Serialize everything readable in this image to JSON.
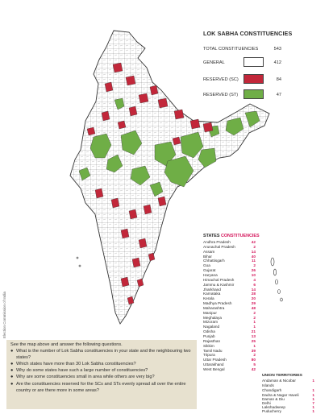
{
  "legend": {
    "title": "LOK SABHA CONSTITUENCIES",
    "total_label": "TOTAL CONSTITUENCIES",
    "total_value": "543",
    "items": [
      {
        "label": "GENERAL",
        "value": "412",
        "color": "#ffffff"
      },
      {
        "label": "RESERVED (SC)",
        "value": "84",
        "color": "#c2273a"
      },
      {
        "label": "RESERVED (ST)",
        "value": "47",
        "color": "#6fae46"
      }
    ]
  },
  "states": {
    "title_plain": "STATES",
    "title_highlight": "CONSTITUENCIES",
    "rows": [
      {
        "name": "Andhra Pradesh",
        "value": "42"
      },
      {
        "name": "Arunachal Pradesh",
        "value": "2"
      },
      {
        "name": "Assam",
        "value": "14"
      },
      {
        "name": "Bihar",
        "value": "40"
      },
      {
        "name": "Chhattisgarh",
        "value": "11"
      },
      {
        "name": "Goa",
        "value": "2"
      },
      {
        "name": "Gujarat",
        "value": "26"
      },
      {
        "name": "Haryana",
        "value": "10"
      },
      {
        "name": "Himachal Pradesh",
        "value": "4"
      },
      {
        "name": "Jammu & Kashmir",
        "value": "6"
      },
      {
        "name": "Jharkhand",
        "value": "14"
      },
      {
        "name": "Karnataka",
        "value": "28"
      },
      {
        "name": "Kerala",
        "value": "20"
      },
      {
        "name": "Madhya Pradesh",
        "value": "29"
      },
      {
        "name": "Maharashtra",
        "value": "48"
      },
      {
        "name": "Manipur",
        "value": "2"
      },
      {
        "name": "Meghalaya",
        "value": "2"
      },
      {
        "name": "Mizoram",
        "value": "1"
      },
      {
        "name": "Nagaland",
        "value": "1"
      },
      {
        "name": "Odisha",
        "value": "21"
      },
      {
        "name": "Punjab",
        "value": "13"
      },
      {
        "name": "Rajasthan",
        "value": "25"
      },
      {
        "name": "Sikkim",
        "value": "1"
      },
      {
        "name": "Tamil Nadu",
        "value": "39"
      },
      {
        "name": "Tripura",
        "value": "2"
      },
      {
        "name": "Uttar Pradesh",
        "value": "80"
      },
      {
        "name": "Uttarakhand",
        "value": "5"
      },
      {
        "name": "West Bengal",
        "value": "42"
      }
    ]
  },
  "union_territories": {
    "title": "UNION TERRITORIES",
    "rows": [
      {
        "name": "Andaman & Nicobar\nIslands",
        "value": "1"
      },
      {
        "name": "Chandigarh",
        "value": "1"
      },
      {
        "name": "Dadra & Nagar Haveli",
        "value": "1"
      },
      {
        "name": "Daman & Diu",
        "value": "1"
      },
      {
        "name": "Delhi",
        "value": "7"
      },
      {
        "name": "Lakshadweep",
        "value": "1"
      },
      {
        "name": "Puducherry",
        "value": "1"
      }
    ]
  },
  "questions": {
    "intro": "See the map above and answer the following questions.",
    "items": [
      "What is the number of Lok Sabha constituencies in your state and the neighbouring two states?",
      "Which states have more than 30 Lok Sabha constituencies?",
      "Why do some states have such a large number of constituencies?",
      "Why are some constituencies small in area while others are very big?",
      "Are the constituencies reserved for the SCs and STs evenly spread all over the entire country or are there more in some areas?"
    ]
  },
  "credit": "Election Commission of India",
  "colors": {
    "general": "#ffffff",
    "sc": "#c2273a",
    "st": "#6fae46",
    "boundary": "#333333",
    "highlight_text": "#d4145a",
    "question_box": "#e7e1cf"
  }
}
